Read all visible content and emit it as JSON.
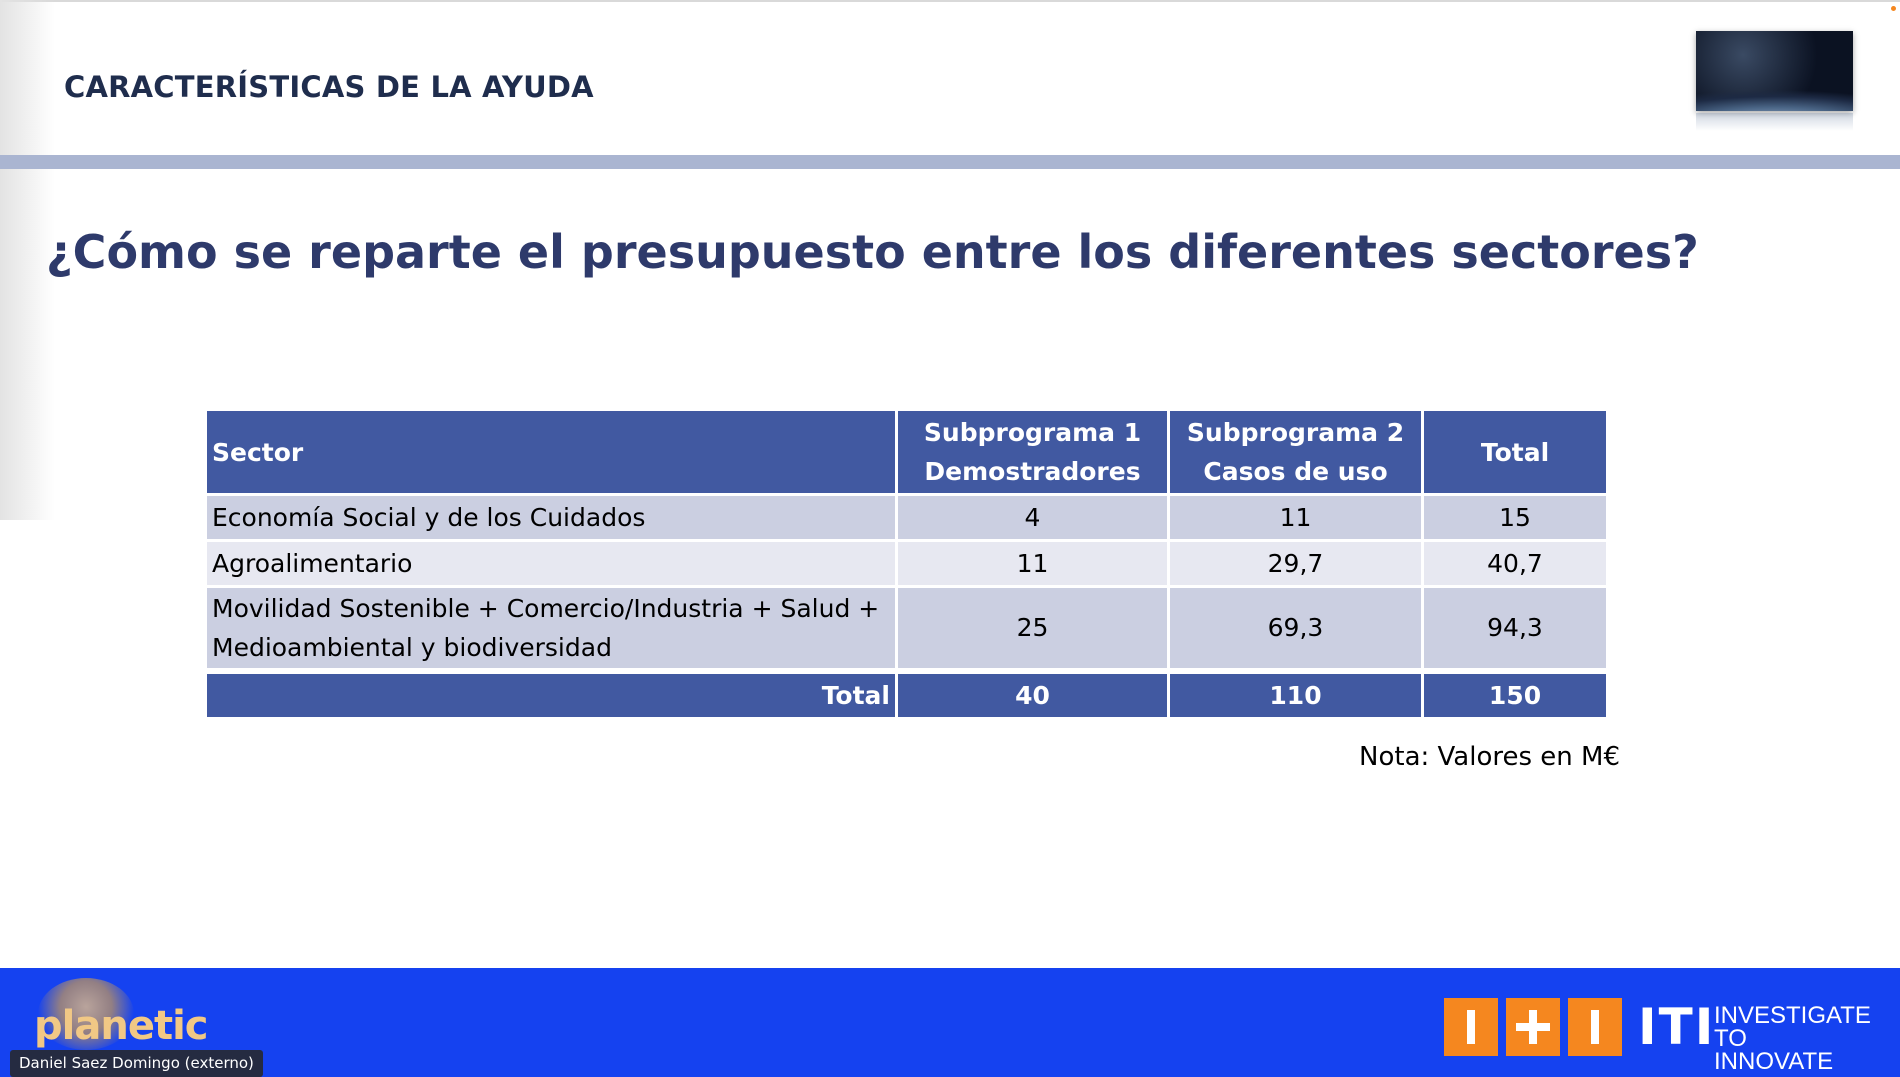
{
  "slide": {
    "header_title": "CARACTERÍSTICAS DE LA AYUDA",
    "question": "¿Cómo se reparte el presupuesto entre los diferentes sectores?",
    "note": "Nota: Valores en M€"
  },
  "table": {
    "headers": {
      "sector": "Sector",
      "sub1_line1": "Subprograma 1",
      "sub1_line2": "Demostradores",
      "sub2_line1": "Subprograma 2",
      "sub2_line2": "Casos de uso",
      "total": "Total"
    },
    "rows": [
      {
        "sector": "Economía Social y de los Cuidados",
        "sub1": "4",
        "sub2": "11",
        "total": "15"
      },
      {
        "sector": "Agroalimentario",
        "sub1": "11",
        "sub2": "29,7",
        "total": "40,7"
      },
      {
        "sector_line1": "Movilidad Sostenible + Comercio/Industria + Salud +",
        "sector_line2": "Medioambiental y biodiversidad",
        "sub1": "25",
        "sub2": "69,3",
        "total": "94,3"
      }
    ],
    "totals": {
      "label": "Total",
      "sub1": "40",
      "sub2": "110",
      "total": "150"
    }
  },
  "footer": {
    "left_logo": "planetic",
    "right_logo": "ITI",
    "right_tagline_line1": "INVESTIGATE",
    "right_tagline_line2": "TO INNOVATE"
  },
  "participant": {
    "name": "Daniel Saez Domingo (externo)"
  },
  "colors": {
    "header_blue": "#4159a1",
    "footer_blue": "#1542f0",
    "iti_orange": "#f5871f",
    "title_navy": "#2e3a6b"
  }
}
